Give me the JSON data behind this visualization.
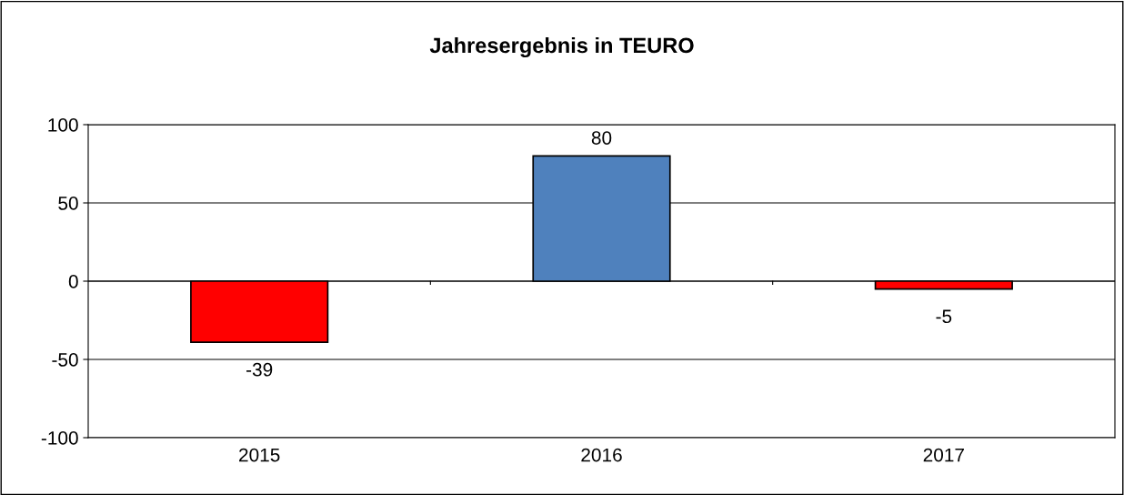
{
  "chart_data": {
    "type": "bar",
    "title": "Jahresergebnis in TEURO",
    "categories": [
      "2015",
      "2016",
      "2017"
    ],
    "values": [
      -39,
      80,
      -5
    ],
    "colors": [
      "#ff0000",
      "#4f81bd",
      "#ff0000"
    ],
    "ylim": [
      -100,
      100
    ],
    "yticks": [
      -100,
      -50,
      0,
      50,
      100
    ],
    "grid": "y",
    "data_labels": true,
    "legend": false
  }
}
